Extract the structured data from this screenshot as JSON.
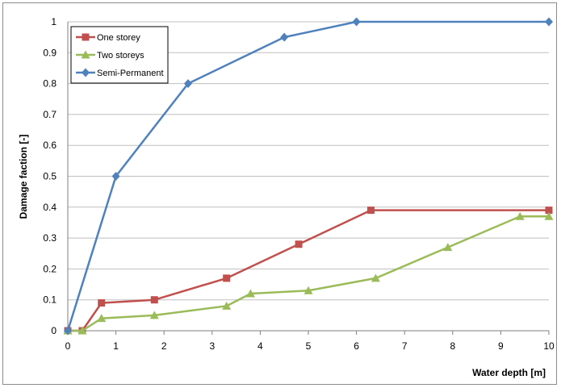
{
  "chart_data": {
    "type": "line",
    "title": "",
    "xlabel": "Water depth [m]",
    "ylabel": "Damage faction [-]",
    "xlim": [
      0,
      10
    ],
    "ylim": [
      0,
      1
    ],
    "x_ticks": [
      "0",
      "1",
      "2",
      "3",
      "4",
      "5",
      "6",
      "7",
      "8",
      "9",
      "10"
    ],
    "y_ticks": [
      "0",
      "0.1",
      "0.2",
      "0.3",
      "0.4",
      "0.5",
      "0.6",
      "0.7",
      "0.8",
      "0.9",
      "1"
    ],
    "grid": "horizontal",
    "legend_position": "top-left",
    "series": [
      {
        "name": "One storey",
        "color": "#c0504d",
        "marker": "square",
        "points": [
          [
            0,
            0
          ],
          [
            0.3,
            0
          ],
          [
            0.7,
            0.09
          ],
          [
            1.8,
            0.1
          ],
          [
            3.3,
            0.17
          ],
          [
            4.8,
            0.28
          ],
          [
            6.3,
            0.39
          ],
          [
            10,
            0.39
          ]
        ]
      },
      {
        "name": "Two storeys",
        "color": "#9bbb59",
        "marker": "triangle",
        "points": [
          [
            0,
            0
          ],
          [
            0.3,
            0
          ],
          [
            0.7,
            0.04
          ],
          [
            1.8,
            0.05
          ],
          [
            3.3,
            0.08
          ],
          [
            3.8,
            0.12
          ],
          [
            5.0,
            0.13
          ],
          [
            6.4,
            0.17
          ],
          [
            7.9,
            0.27
          ],
          [
            9.4,
            0.37
          ],
          [
            10,
            0.37
          ]
        ]
      },
      {
        "name": "Semi-Permanent",
        "color": "#4f81bd",
        "marker": "diamond",
        "points": [
          [
            0,
            0
          ],
          [
            1.0,
            0.5
          ],
          [
            2.5,
            0.8
          ],
          [
            4.5,
            0.95
          ],
          [
            6.0,
            1.0
          ],
          [
            10,
            1.0
          ]
        ]
      }
    ]
  }
}
